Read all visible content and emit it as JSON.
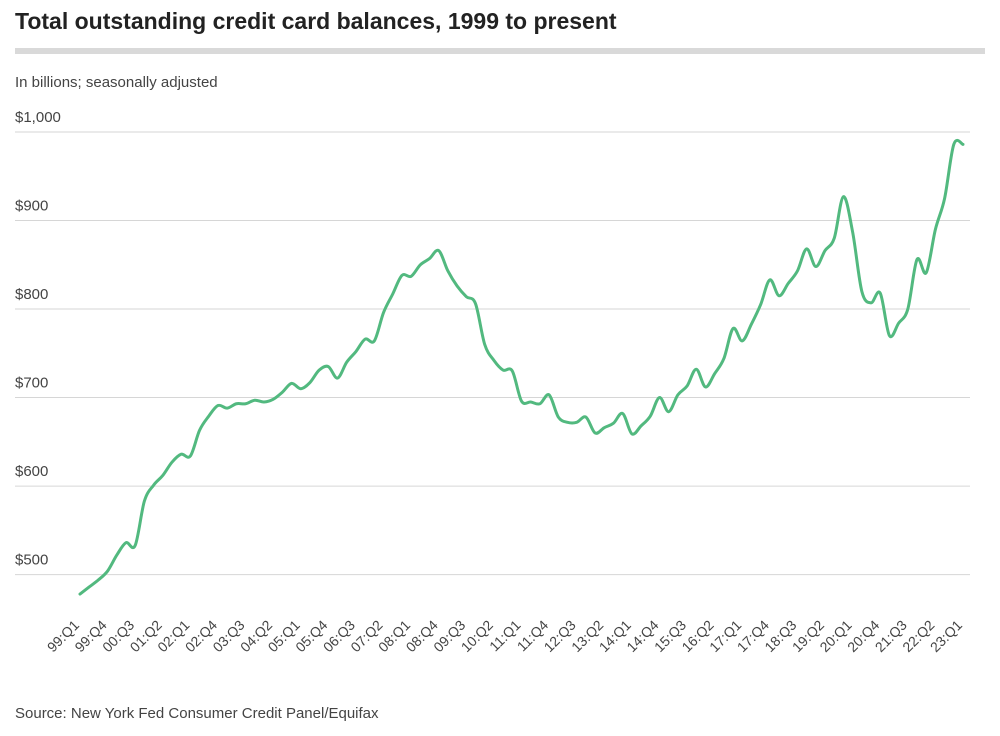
{
  "chart_data": {
    "type": "line",
    "title": "Total outstanding credit card balances, 1999 to present",
    "subtitle": "In billions; seasonally adjusted",
    "source": "Source: New York Fed Consumer Credit Panel/Equifax",
    "categories": [
      "99:Q1",
      null,
      null,
      "99:Q4",
      null,
      null,
      "00:Q3",
      null,
      null,
      "01:Q2",
      null,
      null,
      "02:Q1",
      null,
      null,
      "02:Q4",
      null,
      null,
      "03:Q3",
      null,
      null,
      "04:Q2",
      null,
      null,
      "05:Q1",
      null,
      null,
      "05:Q4",
      null,
      null,
      "06:Q3",
      null,
      null,
      "07:Q2",
      null,
      null,
      "08:Q1",
      null,
      null,
      "08:Q4",
      null,
      null,
      "09:Q3",
      null,
      null,
      "10:Q2",
      null,
      null,
      "11:Q1",
      null,
      null,
      "11:Q4",
      null,
      null,
      "12:Q3",
      null,
      null,
      "13:Q2",
      null,
      null,
      "14:Q1",
      null,
      null,
      "14:Q4",
      null,
      null,
      "15:Q3",
      null,
      null,
      "16:Q2",
      null,
      null,
      "17:Q1",
      null,
      null,
      "17:Q4",
      null,
      null,
      "18:Q3",
      null,
      null,
      "19:Q2",
      null,
      null,
      "20:Q1",
      null,
      null,
      "20:Q4",
      null,
      null,
      "21:Q3",
      null,
      null,
      "22:Q2",
      null,
      null,
      "23:Q1"
    ],
    "values": [
      478,
      486,
      494,
      504,
      522,
      536,
      533,
      583,
      601,
      612,
      627,
      636,
      634,
      663,
      679,
      691,
      688,
      693,
      693,
      697,
      695,
      698,
      706,
      716,
      710,
      717,
      731,
      735,
      722,
      740,
      752,
      766,
      764,
      796,
      817,
      838,
      837,
      850,
      857,
      866,
      843,
      826,
      814,
      806,
      760,
      742,
      731,
      730,
      696,
      695,
      693,
      703,
      678,
      672,
      672,
      678,
      660,
      666,
      671,
      682,
      659,
      668,
      679,
      700,
      684,
      703,
      713,
      732,
      712,
      727,
      744,
      778,
      764,
      783,
      805,
      833,
      815,
      829,
      843,
      868,
      848,
      866,
      880,
      927,
      887,
      820,
      807,
      818,
      770,
      784,
      800,
      856,
      841,
      890,
      925,
      986,
      986
    ],
    "color": "#52b97f",
    "ylim": [
      460,
      1000
    ],
    "yticks": [
      {
        "value": 500,
        "label": "$500"
      },
      {
        "value": 600,
        "label": "$600"
      },
      {
        "value": 700,
        "label": "$700"
      },
      {
        "value": 800,
        "label": "$800"
      },
      {
        "value": 900,
        "label": "$900"
      },
      {
        "value": 1000,
        "label": "$1,000"
      }
    ],
    "grid": true
  }
}
